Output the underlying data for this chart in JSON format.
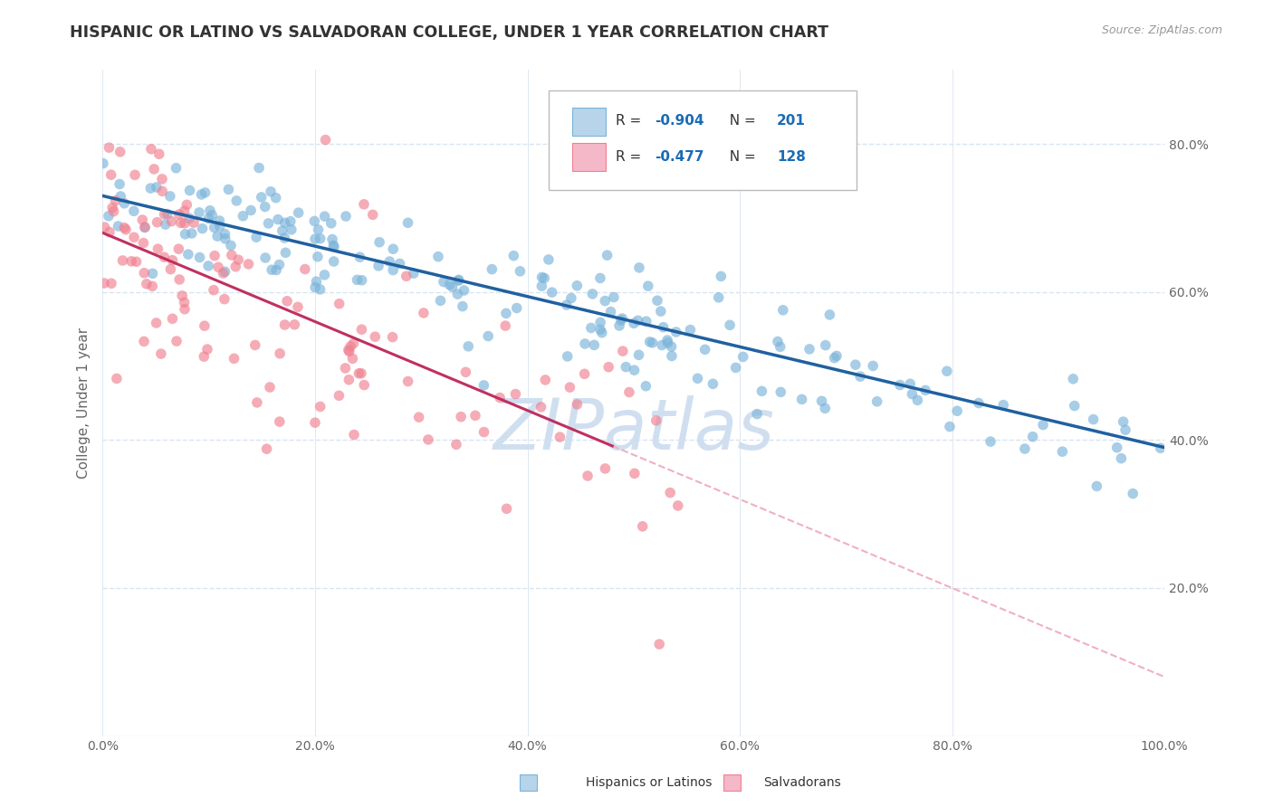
{
  "title": "HISPANIC OR LATINO VS SALVADORAN COLLEGE, UNDER 1 YEAR CORRELATION CHART",
  "source_text": "Source: ZipAtlas.com",
  "xlabel_ticks": [
    "0.0%",
    "20.0%",
    "40.0%",
    "60.0%",
    "80.0%",
    "100.0%"
  ],
  "xlabel_vals": [
    0.0,
    0.2,
    0.4,
    0.6,
    0.8,
    1.0
  ],
  "ylabel": "College, Under 1 year",
  "ytick_vals": [
    0.2,
    0.4,
    0.6,
    0.8
  ],
  "ytick_labels": [
    "20.0%",
    "40.0%",
    "60.0%",
    "80.0%"
  ],
  "ylim_min": 0.0,
  "ylim_max": 0.9,
  "blue_scatter_color": "#7ab3d9",
  "pink_scatter_color": "#f08090",
  "blue_line_color": "#2060a0",
  "pink_line_color": "#c03060",
  "pink_dash_color": "#f0b0c0",
  "watermark_color": "#d0dff0",
  "bg_color": "#ffffff",
  "grid_color": "#d8e4f0",
  "axis_label_color": "#666666",
  "title_color": "#333333",
  "scatter_alpha": 0.65,
  "scatter_size": 70,
  "figsize": [
    14.06,
    8.92
  ],
  "dpi": 100,
  "blue_slope": -0.34,
  "blue_intercept": 0.73,
  "pink_slope": -0.6,
  "pink_intercept": 0.68,
  "legend_R1": "-0.904",
  "legend_N1": "201",
  "legend_R2": "-0.477",
  "legend_N2": "128"
}
